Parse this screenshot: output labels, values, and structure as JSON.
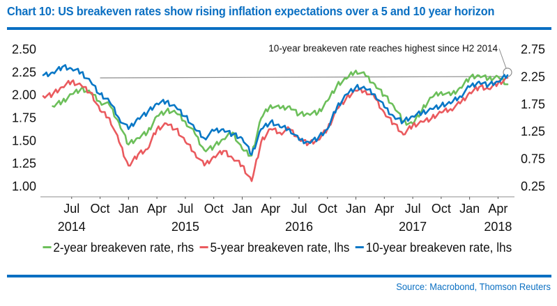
{
  "header": {
    "title": "Chart 10:  US breakeven rates show rising inflation expectations over a 5 and 10 year horizon"
  },
  "footer": {
    "source": "Source: Macrobond, Thomson Reuters"
  },
  "colors": {
    "brand": "#0a6fc2",
    "series_2y": "#6cbf5a",
    "series_5y": "#ea5a5e",
    "series_10y": "#0877c6",
    "reference_line": "#8c8c8c"
  },
  "chart_data": {
    "type": "line",
    "title": "Chart 10:  US breakeven rates show rising inflation expectations over a 5 and 10 year horizon",
    "xlabel": "",
    "ylabel_left": "",
    "ylabel_right": "",
    "x_range": [
      "2014-04",
      "2018-05"
    ],
    "x_tick_labels": [
      {
        "month": "Jul",
        "year": "2014",
        "date": "2014-07"
      },
      {
        "month": "Oct",
        "year": "",
        "date": "2014-10"
      },
      {
        "month": "Jan",
        "year": "",
        "date": "2015-01"
      },
      {
        "month": "Apr",
        "year": "",
        "date": "2015-04"
      },
      {
        "month": "Jul",
        "year": "2015",
        "date": "2015-07"
      },
      {
        "month": "Oct",
        "year": "",
        "date": "2015-10"
      },
      {
        "month": "Jan",
        "year": "",
        "date": "2016-01"
      },
      {
        "month": "Apr",
        "year": "",
        "date": "2016-04"
      },
      {
        "month": "Jul",
        "year": "2016",
        "date": "2016-07"
      },
      {
        "month": "Oct",
        "year": "",
        "date": "2016-10"
      },
      {
        "month": "Jan",
        "year": "",
        "date": "2017-01"
      },
      {
        "month": "Apr",
        "year": "",
        "date": "2017-04"
      },
      {
        "month": "Jul",
        "year": "2017",
        "date": "2017-07"
      },
      {
        "month": "Oct",
        "year": "",
        "date": "2017-10"
      },
      {
        "month": "Jan",
        "year": "",
        "date": "2018-01"
      },
      {
        "month": "Apr",
        "year": "2018",
        "date": "2018-04"
      }
    ],
    "y_left": {
      "range": [
        1.0,
        2.5
      ],
      "ticks": [
        "2.50",
        "2.25",
        "2.00",
        "1.75",
        "1.50",
        "1.25",
        "1.00"
      ]
    },
    "y_right": {
      "range": [
        0.25,
        2.75
      ],
      "ticks": [
        "2.75",
        "2.25",
        "1.75",
        "1.25",
        "0.75",
        "0.25"
      ]
    },
    "grid": false,
    "legend_position": "bottom",
    "annotations": [
      {
        "text": "10-year breakeven rate reaches highest since H2 2014",
        "reference_level_lhs": 2.18,
        "from_date": "2014-10",
        "to_date": "2018-05"
      }
    ],
    "dates": [
      "2014-04",
      "2014-05",
      "2014-06",
      "2014-07",
      "2014-08",
      "2014-09",
      "2014-10",
      "2014-11",
      "2014-12",
      "2015-01",
      "2015-02",
      "2015-03",
      "2015-04",
      "2015-05",
      "2015-06",
      "2015-07",
      "2015-08",
      "2015-09",
      "2015-10",
      "2015-11",
      "2015-12",
      "2016-01",
      "2016-02",
      "2016-03",
      "2016-04",
      "2016-05",
      "2016-06",
      "2016-07",
      "2016-08",
      "2016-09",
      "2016-10",
      "2016-11",
      "2016-12",
      "2017-01",
      "2017-02",
      "2017-03",
      "2017-04",
      "2017-05",
      "2017-06",
      "2017-07",
      "2017-08",
      "2017-09",
      "2017-10",
      "2017-11",
      "2017-12",
      "2018-01",
      "2018-02",
      "2018-03",
      "2018-04",
      "2018-05"
    ],
    "series": [
      {
        "name": "2-year breakeven rate, rhs",
        "axis": "right",
        "values": [
          null,
          1.7,
          1.78,
          1.92,
          2.02,
          1.94,
          1.78,
          1.72,
          1.4,
          1.0,
          1.12,
          1.22,
          1.52,
          1.62,
          1.58,
          1.42,
          1.2,
          0.9,
          0.96,
          1.1,
          1.22,
          0.92,
          0.8,
          1.48,
          1.72,
          1.66,
          1.7,
          1.55,
          1.56,
          1.58,
          1.8,
          2.08,
          2.2,
          2.35,
          2.26,
          2.1,
          1.9,
          1.7,
          1.42,
          1.38,
          1.64,
          1.86,
          1.96,
          1.9,
          2.04,
          2.22,
          2.26,
          2.2,
          2.24,
          2.1
        ]
      },
      {
        "name": "5-year breakeven rate, lhs",
        "axis": "left",
        "values": [
          1.98,
          2.0,
          2.08,
          2.14,
          2.1,
          2.02,
          1.82,
          1.74,
          1.48,
          1.22,
          1.34,
          1.4,
          1.62,
          1.68,
          1.62,
          1.48,
          1.36,
          1.22,
          1.32,
          1.38,
          1.3,
          1.22,
          1.05,
          1.48,
          1.62,
          1.58,
          1.62,
          1.52,
          1.46,
          1.5,
          1.62,
          1.84,
          1.96,
          2.04,
          2.04,
          1.96,
          1.8,
          1.68,
          1.56,
          1.66,
          1.7,
          1.74,
          1.8,
          1.84,
          1.9,
          2.02,
          2.08,
          2.06,
          2.12,
          2.18
        ]
      },
      {
        "name": "10-year breakeven rate, lhs",
        "axis": "left",
        "values": [
          2.21,
          2.24,
          2.3,
          2.28,
          2.24,
          2.14,
          2.0,
          1.92,
          1.74,
          1.62,
          1.74,
          1.8,
          1.9,
          1.92,
          1.86,
          1.76,
          1.62,
          1.52,
          1.6,
          1.62,
          1.56,
          1.52,
          1.34,
          1.62,
          1.7,
          1.64,
          1.62,
          1.5,
          1.48,
          1.52,
          1.62,
          1.86,
          2.0,
          2.08,
          2.06,
          2.0,
          1.86,
          1.76,
          1.7,
          1.76,
          1.8,
          1.84,
          1.88,
          1.9,
          1.98,
          2.08,
          2.14,
          2.1,
          2.14,
          2.21
        ]
      }
    ]
  }
}
